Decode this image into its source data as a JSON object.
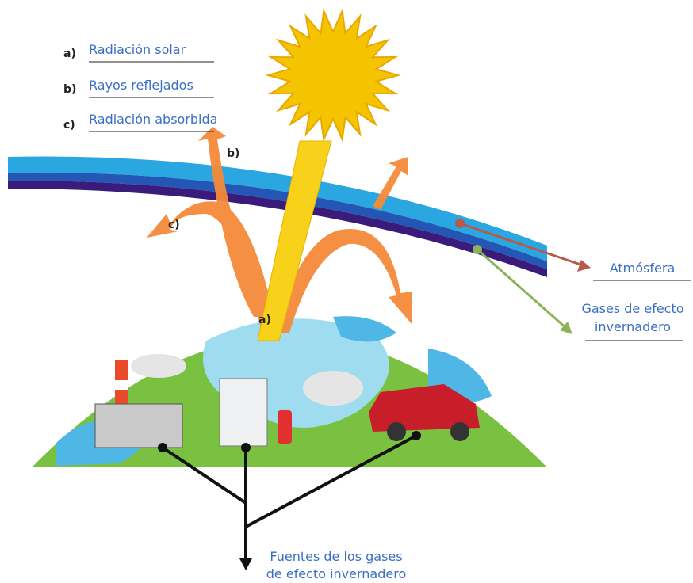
{
  "legend": [
    {
      "letter": "a)",
      "label": "Radiación solar"
    },
    {
      "letter": "b)",
      "label": "Rayos reflejados"
    },
    {
      "letter": "c)",
      "label": "Radiación absorbida"
    }
  ],
  "diagram_labels": {
    "reflected": "b)",
    "absorbed": "c)",
    "solar": "a)"
  },
  "callouts": {
    "atmosphere": "Atmósfera",
    "gases": [
      "Gases de efecto",
      "invernadero"
    ],
    "sources": [
      "Fuentes de los gases",
      "de efecto invernadero"
    ]
  }
}
